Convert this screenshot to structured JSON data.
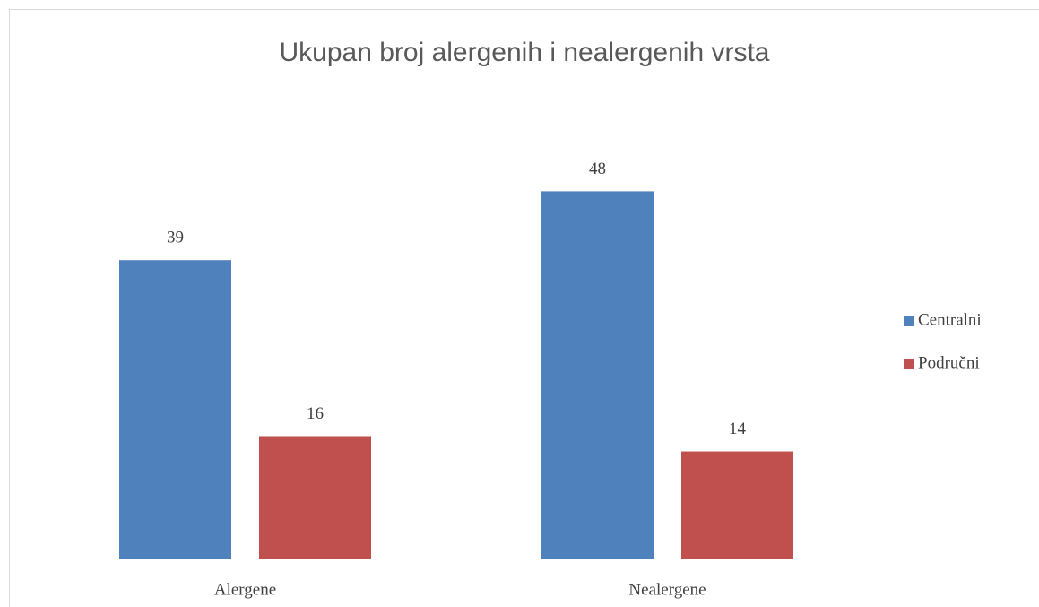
{
  "chart_data": {
    "type": "bar",
    "title": "Ukupan broj alergenih i nealergenih vrsta",
    "categories": [
      "Alergene",
      "Nealergene"
    ],
    "series": [
      {
        "name": "Centralni",
        "color": "#4f81bd",
        "values": [
          39,
          48
        ]
      },
      {
        "name": "Područni",
        "color": "#c0504d",
        "values": [
          16,
          14
        ]
      }
    ],
    "ylim": [
      0,
      60
    ],
    "legend": "right"
  }
}
